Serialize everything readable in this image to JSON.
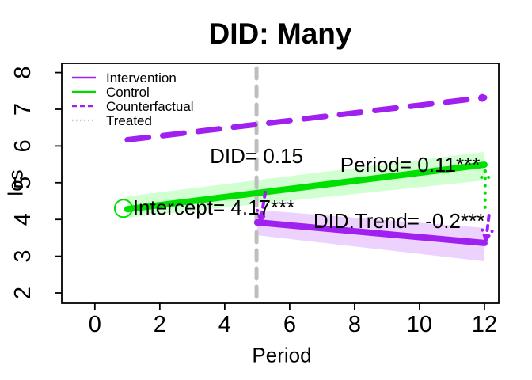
{
  "title": "DID: Many",
  "axes": {
    "x": {
      "label": "Period"
    },
    "y": {
      "label": "los"
    }
  },
  "legend": {
    "items": [
      {
        "label": "Intervention",
        "color": "#A020F0",
        "style": "solid"
      },
      {
        "label": "Control",
        "color": "#00D900",
        "style": "solid"
      },
      {
        "label": "Counterfactual",
        "color": "#A020F0",
        "style": "dashed"
      },
      {
        "label": "Treated",
        "color": "#C9C9C9",
        "style": "dotted"
      }
    ]
  },
  "colors": {
    "purple": "#A020F0",
    "green": "#00DF00",
    "green_band": "rgba(0,255,0,0.18)",
    "purple_band": "rgba(160,32,240,0.20)",
    "gray_line": "#BEBEBE",
    "axis": "#000000"
  },
  "chart_data": {
    "type": "line",
    "title": "DID: Many",
    "xlabel": "Period",
    "ylabel": "los",
    "xlim": [
      -1.02,
      12.44
    ],
    "ylim": [
      1.72,
      8.25
    ],
    "x_ticks": [
      0,
      2,
      4,
      6,
      8,
      10,
      12
    ],
    "y_ticks": [
      2,
      3,
      4,
      5,
      6,
      7,
      8
    ],
    "grid": false,
    "legend_position": "top-left",
    "series": [
      {
        "name": "Counterfactual",
        "color": "#A020F0",
        "style": "dashed",
        "width": 7,
        "dash": [
          27,
          18
        ],
        "x": [
          1,
          12
        ],
        "y": [
          6.17,
          7.32
        ]
      },
      {
        "name": "Control",
        "color": "#00DF00",
        "style": "solid",
        "width": 8,
        "x": [
          1,
          12
        ],
        "y": [
          4.28,
          5.49
        ],
        "band": {
          "fill": "rgba(0,255,0,0.18)",
          "upper": [
            4.63,
            5.84
          ],
          "lower": [
            4.05,
            5.06
          ]
        }
      },
      {
        "name": "Intervention",
        "color": "#A020F0",
        "style": "solid",
        "width": 8,
        "x": [
          5,
          12
        ],
        "y": [
          3.92,
          3.36
        ],
        "band": {
          "fill": "rgba(160,32,240,0.20)",
          "upper": [
            4.26,
            3.77
          ],
          "lower": [
            3.57,
            2.86
          ]
        }
      },
      {
        "name": "Treated",
        "color": "#BEBEBE",
        "style": "dashed",
        "width": 5,
        "dash": [
          13,
          10
        ],
        "vline_x": 4.98,
        "y_span": [
          1.75,
          8.12
        ]
      }
    ],
    "markers": [
      {
        "name": "control-start-open-circle",
        "shape": "open-circle",
        "color": "#00DF00",
        "at": [
          0.88,
          4.3
        ],
        "r": 11
      },
      {
        "name": "counterfactual-end-dot",
        "shape": "dot",
        "color": "#A020F0",
        "at": [
          11.93,
          7.31
        ],
        "r": 5
      }
    ],
    "arrows": [
      {
        "name": "did-arrow-at-treatment",
        "color": "#A020F0",
        "dash": [
          6,
          7
        ],
        "width": 4,
        "from": [
          5.25,
          4.74
        ],
        "to": [
          5.11,
          3.98
        ]
      },
      {
        "name": "control-end-arrow",
        "color": "#00DF00",
        "dash": [
          0.1,
          9
        ],
        "width": 4,
        "from": [
          12.02,
          4.33
        ],
        "to": [
          12.02,
          5.32
        ]
      },
      {
        "name": "intervention-end-arrow",
        "color": "#A020F0",
        "dash": [
          6,
          7
        ],
        "width": 4,
        "from": [
          12.14,
          4.11
        ],
        "to": [
          12.05,
          3.45
        ]
      }
    ],
    "annotations": [
      {
        "text": "DID= 0.15",
        "x": 4.98,
        "y": 5.7,
        "anchor": "middle"
      },
      {
        "text": "Intercept= 4.17***",
        "x": 1.17,
        "y": 4.31,
        "anchor": "start"
      },
      {
        "text": "Period= 0.11***",
        "x": 9.71,
        "y": 5.47,
        "anchor": "middle"
      },
      {
        "text": "DID.Trend= -0.2***",
        "x": 9.37,
        "y": 3.94,
        "anchor": "middle"
      }
    ],
    "stats": {
      "Intercept": 4.17,
      "Period": 0.11,
      "DID": 0.15,
      "DID.Trend": -0.2
    }
  }
}
